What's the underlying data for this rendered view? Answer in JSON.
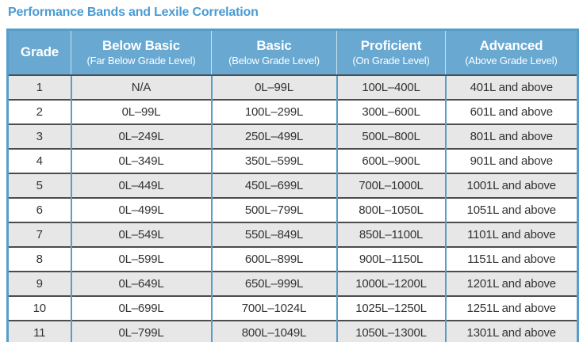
{
  "title": "Performance Bands and Lexile Correlation",
  "colors": {
    "title_text": "#4a9bd1",
    "header_bg": "#68a8d1",
    "header_text": "#ffffff",
    "outer_border": "#579dca",
    "column_divider": "#579dca",
    "row_divider": "#4c4c4c",
    "row_alt_bg": "#e7e7e7",
    "row_bg": "#ffffff",
    "cell_text": "#333333"
  },
  "table": {
    "columns": [
      {
        "label": "Grade",
        "sublabel": ""
      },
      {
        "label": "Below Basic",
        "sublabel": "(Far Below Grade Level)"
      },
      {
        "label": "Basic",
        "sublabel": "(Below Grade Level)"
      },
      {
        "label": "Proficient",
        "sublabel": "(On Grade Level)"
      },
      {
        "label": "Advanced",
        "sublabel": "(Above Grade Level)"
      }
    ],
    "rows": [
      [
        "1",
        "N/A",
        "0L–99L",
        "100L–400L",
        "401L and above"
      ],
      [
        "2",
        "0L–99L",
        "100L–299L",
        "300L–600L",
        "601L and above"
      ],
      [
        "3",
        "0L–249L",
        "250L–499L",
        "500L–800L",
        "801L and above"
      ],
      [
        "4",
        "0L–349L",
        "350L–599L",
        "600L–900L",
        "901L and above"
      ],
      [
        "5",
        "0L–449L",
        "450L–699L",
        "700L–1000L",
        "1001L and above"
      ],
      [
        "6",
        "0L–499L",
        "500L–799L",
        "800L–1050L",
        "1051L and above"
      ],
      [
        "7",
        "0L–549L",
        "550L–849L",
        "850L–1100L",
        "1101L and above"
      ],
      [
        "8",
        "0L–599L",
        "600L–899L",
        "900L–1150L",
        "1151L and above"
      ],
      [
        "9",
        "0L–649L",
        "650L–999L",
        "1000L–1200L",
        "1201L and above"
      ],
      [
        "10",
        "0L–699L",
        "700L–1024L",
        "1025L–1250L",
        "1251L and above"
      ],
      [
        "11",
        "0L–799L",
        "800L–1049L",
        "1050L–1300L",
        "1301L and above"
      ]
    ]
  }
}
